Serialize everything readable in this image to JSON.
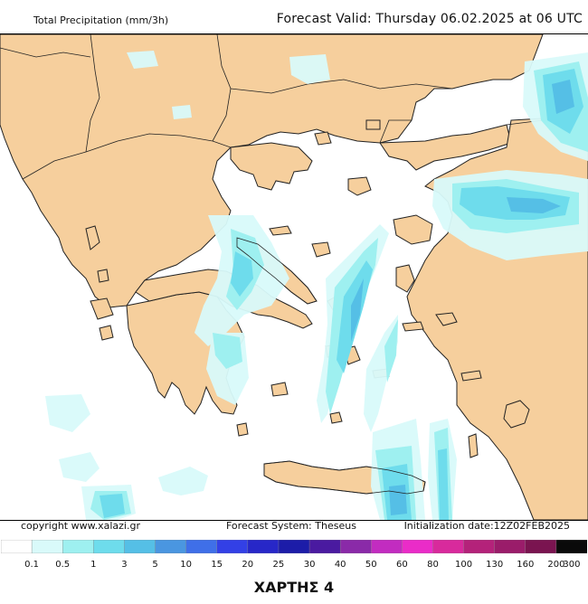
{
  "header": {
    "product": "Total Precipitation (mm/3h)",
    "forecast_valid": "Forecast Valid:  Thursday 06.02.2025 at 06 UTC"
  },
  "footer": {
    "copyright": "copyright www.xalazi.gr",
    "system": "Forecast System: Theseus",
    "init": "Initialization date:12Z02FEB2025"
  },
  "legend": {
    "labels": [
      "0.1",
      "0.5",
      "1",
      "3",
      "5",
      "10",
      "15",
      "20",
      "25",
      "30",
      "40",
      "50",
      "60",
      "80",
      "100",
      "130",
      "160",
      "200",
      "300"
    ],
    "colors": [
      "#ffffff",
      "#d9fafa",
      "#9ef0f0",
      "#6edcec",
      "#55bfe6",
      "#4a96e0",
      "#3f6fe8",
      "#3340e6",
      "#2727c8",
      "#1c1ca8",
      "#4a1aa0",
      "#8a2aa8",
      "#c22cc0",
      "#ea2cc8",
      "#d82a9c",
      "#b4227a",
      "#9a1c6a",
      "#7a1450",
      "#0a0a0a"
    ]
  },
  "map": {
    "land_color": "#f6cf9d",
    "sea_color": "#ffffff",
    "border_color": "#222222",
    "precip_colors": {
      "light": "#d9fafa",
      "moderate": "#9ef0f0",
      "heavy": "#6edcec",
      "intense": "#55bfe6"
    }
  },
  "title": "ΧΑΡΤΗΣ 4"
}
